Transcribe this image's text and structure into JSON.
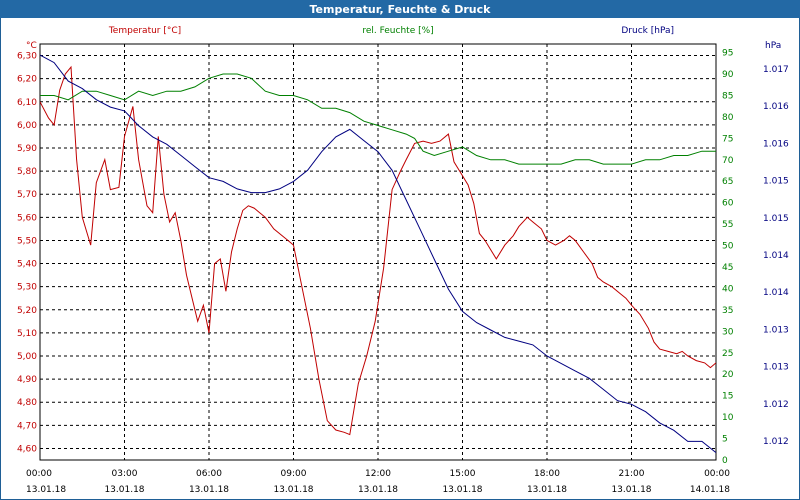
{
  "chart_data": {
    "type": "line",
    "title": "Temperatur, Feuchte & Druck",
    "grid": true,
    "x_ticks": [
      {
        "time": "00:00",
        "date": "13.01.18"
      },
      {
        "time": "03:00",
        "date": "13.01.18"
      },
      {
        "time": "06:00",
        "date": "13.01.18"
      },
      {
        "time": "09:00",
        "date": "13.01.18"
      },
      {
        "time": "12:00",
        "date": "13.01.18"
      },
      {
        "time": "15:00",
        "date": "13.01.18"
      },
      {
        "time": "18:00",
        "date": "13.01.18"
      },
      {
        "time": "21:00",
        "date": "13.01.18"
      },
      {
        "time": "00:00",
        "date": "14.01.18"
      }
    ],
    "xlim": [
      0,
      24
    ],
    "axes": {
      "temperature": {
        "label": "Temperatur [°C]",
        "unit": "°C",
        "color": "#c00000",
        "ylim": [
          4.55,
          6.35
        ],
        "ticks": [
          "6,30",
          "6,20",
          "6,10",
          "6,00",
          "5,90",
          "5,80",
          "5,70",
          "5,60",
          "5,50",
          "5,40",
          "5,30",
          "5,20",
          "5,10",
          "5,00",
          "4,90",
          "4,80",
          "4,70",
          "4,60"
        ]
      },
      "humidity": {
        "label": "rel. Feuchte [%]",
        "unit": "%",
        "color": "#008000",
        "ylim": [
          0,
          97
        ],
        "ticks": [
          "95",
          "90",
          "85",
          "80",
          "75",
          "70",
          "65",
          "60",
          "55",
          "50",
          "45",
          "40",
          "35",
          "30",
          "25",
          "20",
          "15",
          "10",
          "5",
          "0"
        ]
      },
      "pressure": {
        "label": "Druck [hPa]",
        "unit": "hPa",
        "color": "#000080",
        "ylim": [
          1011.7,
          1017.3
        ],
        "ticks": [
          "1.017",
          "1.016",
          "1.016",
          "1.015",
          "1.015",
          "1.014",
          "1.014",
          "1.013",
          "1.013",
          "1.012",
          "1.012"
        ]
      }
    },
    "series": [
      {
        "name": "Temperatur [°C]",
        "axis": "temperature",
        "color": "#c00000",
        "x": [
          0,
          0.3,
          0.5,
          0.7,
          0.9,
          1.1,
          1.3,
          1.5,
          1.8,
          2.0,
          2.3,
          2.5,
          2.8,
          3.0,
          3.3,
          3.5,
          3.8,
          4.0,
          4.2,
          4.4,
          4.6,
          4.8,
          5.0,
          5.2,
          5.4,
          5.6,
          5.8,
          6.0,
          6.2,
          6.4,
          6.6,
          6.8,
          7.0,
          7.2,
          7.4,
          7.6,
          7.8,
          8.0,
          8.3,
          8.6,
          8.8,
          9.0,
          9.3,
          9.6,
          9.9,
          10.2,
          10.5,
          10.8,
          11.0,
          11.3,
          11.6,
          11.9,
          12.2,
          12.5,
          12.8,
          13.0,
          13.3,
          13.6,
          13.9,
          14.2,
          14.5,
          14.7,
          15.0,
          15.2,
          15.4,
          15.6,
          15.8,
          16.0,
          16.2,
          16.5,
          16.8,
          17.0,
          17.3,
          17.5,
          17.8,
          18.0,
          18.3,
          18.6,
          18.8,
          19.0,
          19.3,
          19.6,
          19.8,
          20.0,
          20.3,
          20.6,
          20.8,
          21.0,
          21.3,
          21.6,
          21.8,
          22.0,
          22.3,
          22.6,
          22.8,
          23.0,
          23.3,
          23.6,
          23.8,
          24.0
        ],
        "values": [
          6.1,
          6.03,
          6.0,
          6.15,
          6.22,
          6.25,
          5.85,
          5.6,
          5.48,
          5.75,
          5.85,
          5.72,
          5.73,
          5.95,
          6.08,
          5.85,
          5.65,
          5.62,
          5.95,
          5.7,
          5.58,
          5.62,
          5.5,
          5.35,
          5.25,
          5.15,
          5.22,
          5.1,
          5.4,
          5.42,
          5.28,
          5.45,
          5.55,
          5.63,
          5.65,
          5.64,
          5.62,
          5.6,
          5.55,
          5.52,
          5.5,
          5.48,
          5.3,
          5.12,
          4.9,
          4.72,
          4.68,
          4.67,
          4.66,
          4.88,
          5.0,
          5.15,
          5.38,
          5.72,
          5.8,
          5.85,
          5.92,
          5.93,
          5.92,
          5.93,
          5.96,
          5.84,
          5.78,
          5.74,
          5.66,
          5.53,
          5.5,
          5.46,
          5.42,
          5.48,
          5.52,
          5.56,
          5.6,
          5.58,
          5.55,
          5.5,
          5.48,
          5.5,
          5.52,
          5.5,
          5.45,
          5.4,
          5.34,
          5.32,
          5.3,
          5.27,
          5.25,
          5.22,
          5.18,
          5.12,
          5.06,
          5.03,
          5.02,
          5.01,
          5.02,
          5.0,
          4.98,
          4.97,
          4.95,
          4.97
        ]
      },
      {
        "name": "rel. Feuchte [%]",
        "axis": "humidity",
        "color": "#008000",
        "x": [
          0,
          0.5,
          1.0,
          1.5,
          2.0,
          2.5,
          3.0,
          3.5,
          4.0,
          4.5,
          5.0,
          5.5,
          6.0,
          6.5,
          7.0,
          7.5,
          8.0,
          8.5,
          9.0,
          9.5,
          10.0,
          10.5,
          11.0,
          11.5,
          12.0,
          12.5,
          13.0,
          13.3,
          13.6,
          14.0,
          14.5,
          15.0,
          15.5,
          16.0,
          16.5,
          17.0,
          17.5,
          18.0,
          18.5,
          19.0,
          19.5,
          20.0,
          20.5,
          21.0,
          21.5,
          22.0,
          22.5,
          23.0,
          23.5,
          24.0
        ],
        "values": [
          85,
          85,
          84,
          86,
          86,
          85,
          84,
          86,
          85,
          86,
          86,
          87,
          89,
          90,
          90,
          89,
          86,
          85,
          85,
          84,
          82,
          82,
          81,
          79,
          78,
          77,
          76,
          75,
          72,
          71,
          72,
          73,
          71,
          70,
          70,
          69,
          69,
          69,
          69,
          70,
          70,
          69,
          69,
          69,
          70,
          70,
          71,
          71,
          72,
          72
        ]
      },
      {
        "name": "Druck [hPa]",
        "axis": "pressure",
        "color": "#000080",
        "x": [
          0,
          0.5,
          1.0,
          1.5,
          2.0,
          2.5,
          3.0,
          3.5,
          4.0,
          4.5,
          5.0,
          5.5,
          6.0,
          6.5,
          7.0,
          7.5,
          8.0,
          8.5,
          9.0,
          9.5,
          10.0,
          10.5,
          11.0,
          11.5,
          12.0,
          12.5,
          13.0,
          13.5,
          14.0,
          14.5,
          15.0,
          15.5,
          16.0,
          16.5,
          17.0,
          17.5,
          18.0,
          18.5,
          19.0,
          19.5,
          20.0,
          20.5,
          21.0,
          21.5,
          22.0,
          22.5,
          23.0,
          23.5,
          24.0
        ],
        "values": [
          1017.15,
          1017.05,
          1016.8,
          1016.7,
          1016.55,
          1016.45,
          1016.4,
          1016.2,
          1016.05,
          1015.95,
          1015.8,
          1015.65,
          1015.5,
          1015.45,
          1015.35,
          1015.3,
          1015.3,
          1015.35,
          1015.45,
          1015.6,
          1015.85,
          1016.05,
          1016.15,
          1016.0,
          1015.85,
          1015.6,
          1015.2,
          1014.8,
          1014.4,
          1014.0,
          1013.7,
          1013.55,
          1013.45,
          1013.35,
          1013.3,
          1013.25,
          1013.1,
          1013.0,
          1012.9,
          1012.8,
          1012.65,
          1012.5,
          1012.45,
          1012.35,
          1012.2,
          1012.1,
          1011.95,
          1011.95,
          1011.8
        ]
      }
    ]
  }
}
